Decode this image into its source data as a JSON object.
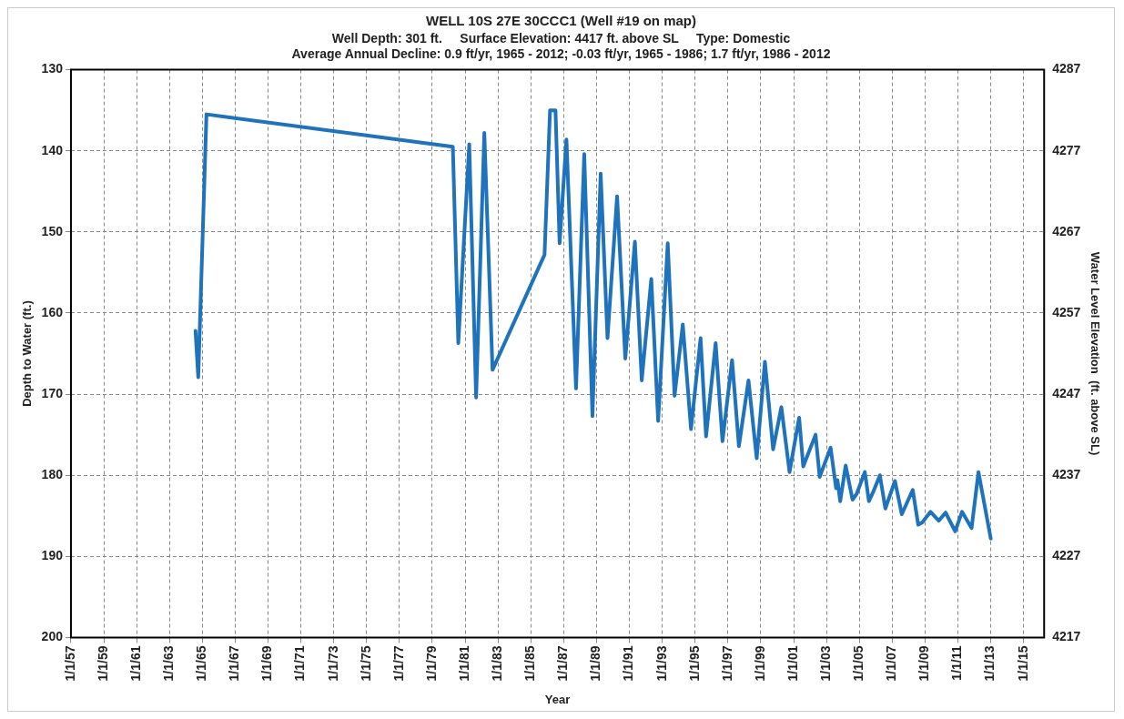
{
  "chart_data": {
    "type": "line",
    "title": "WELL 10S 27E 30CCC1 (Well #19 on map)",
    "subtitle": "Well Depth: 301 ft.     Surface Elevation: 4417 ft. above SL     Type: Domestic\nAverage Annual Decline: 0.9 ft/yr, 1965 - 2012; -0.03 ft/yr, 1965 - 1986; 1.7 ft/yr, 1986 - 2012",
    "xlabel": "Year",
    "ylabel": "Depth to Water (ft.)",
    "y2label": "Water Level Elevation  (ft. above SL)",
    "x": [
      "1964-08",
      "1964-10",
      "1965-04",
      "1980-04",
      "1980-08",
      "1981-04",
      "1981-09",
      "1982-03",
      "1982-09",
      "1985-11",
      "1986-03",
      "1986-07",
      "1986-10",
      "1987-03",
      "1987-10",
      "1988-04",
      "1988-10",
      "1989-04",
      "1989-09",
      "1990-04",
      "1990-10",
      "1991-05",
      "1991-10",
      "1992-05",
      "1992-10",
      "1993-05",
      "1993-10",
      "1994-04",
      "1994-10",
      "1995-05",
      "1995-09",
      "1996-04",
      "1996-09",
      "1997-04",
      "1997-09",
      "1998-04",
      "1998-10",
      "1999-04",
      "1999-10",
      "2000-04",
      "2000-10",
      "2001-05",
      "2001-08",
      "2002-05",
      "2002-08",
      "2003-04",
      "2003-08",
      "2003-09",
      "2003-11",
      "2004-03",
      "2004-08",
      "2004-11",
      "2005-05",
      "2005-08",
      "2005-11",
      "2006-04",
      "2006-08",
      "2007-03",
      "2007-08",
      "2008-04",
      "2008-08",
      "2008-11",
      "2009-05",
      "2009-11",
      "2010-04",
      "2010-11",
      "2011-04",
      "2011-11",
      "2012-04",
      "2013-01"
    ],
    "series": [
      {
        "color": "#1f73bd",
        "values": [
          162.2,
          167.9,
          135.5,
          139.5,
          163.7,
          139.2,
          170.4,
          137.8,
          167.0,
          152.8,
          135.0,
          135.0,
          151.4,
          138.6,
          169.3,
          140.4,
          172.7,
          142.8,
          163.1,
          145.6,
          165.6,
          151.2,
          168.3,
          155.8,
          173.3,
          151.4,
          170.2,
          161.4,
          174.3,
          163.1,
          175.2,
          163.7,
          175.8,
          165.8,
          176.4,
          168.3,
          177.9,
          166.0,
          176.8,
          171.6,
          179.6,
          172.9,
          178.9,
          175.0,
          180.2,
          176.6,
          181.6,
          180.6,
          183.2,
          178.8,
          183.0,
          182.3,
          179.6,
          183.2,
          182.1,
          180.0,
          184.1,
          180.7,
          184.8,
          181.8,
          186.1,
          185.8,
          184.5,
          185.6,
          184.6,
          186.9,
          184.5,
          186.5,
          179.6,
          187.8
        ]
      }
    ],
    "xlim": [
      "1957-01-01",
      "2016-04-01"
    ],
    "xticks": [
      {
        "value": "1957-01-01",
        "label": "1/1/57"
      },
      {
        "value": "1959-01-01",
        "label": "1/1/59"
      },
      {
        "value": "1961-01-01",
        "label": "1/1/61"
      },
      {
        "value": "1963-01-01",
        "label": "1/1/63"
      },
      {
        "value": "1965-01-01",
        "label": "1/1/65"
      },
      {
        "value": "1967-01-01",
        "label": "1/1/67"
      },
      {
        "value": "1969-01-01",
        "label": "1/1/69"
      },
      {
        "value": "1971-01-01",
        "label": "1/1/71"
      },
      {
        "value": "1973-01-01",
        "label": "1/1/73"
      },
      {
        "value": "1975-01-01",
        "label": "1/1/75"
      },
      {
        "value": "1977-01-01",
        "label": "1/1/77"
      },
      {
        "value": "1979-01-01",
        "label": "1/1/79"
      },
      {
        "value": "1981-01-01",
        "label": "1/1/81"
      },
      {
        "value": "1983-01-01",
        "label": "1/1/83"
      },
      {
        "value": "1985-01-01",
        "label": "1/1/85"
      },
      {
        "value": "1987-01-01",
        "label": "1/1/87"
      },
      {
        "value": "1989-01-01",
        "label": "1/1/89"
      },
      {
        "value": "1991-01-01",
        "label": "1/1/91"
      },
      {
        "value": "1993-01-01",
        "label": "1/1/93"
      },
      {
        "value": "1995-01-01",
        "label": "1/1/95"
      },
      {
        "value": "1997-01-01",
        "label": "1/1/97"
      },
      {
        "value": "1999-01-01",
        "label": "1/1/99"
      },
      {
        "value": "2001-01-01",
        "label": "1/1/01"
      },
      {
        "value": "2003-01-01",
        "label": "1/1/03"
      },
      {
        "value": "2005-01-01",
        "label": "1/1/05"
      },
      {
        "value": "2007-01-01",
        "label": "1/1/07"
      },
      {
        "value": "2009-01-01",
        "label": "1/1/09"
      },
      {
        "value": "2011-01-01",
        "label": "1/1/11"
      },
      {
        "value": "2013-01-01",
        "label": "1/1/13"
      },
      {
        "value": "2015-01-01",
        "label": "1/1/15"
      }
    ],
    "ylim": [
      200,
      130
    ],
    "yticks": [
      130,
      140,
      150,
      160,
      170,
      180,
      190,
      200
    ],
    "y2lim": [
      4217,
      4287
    ],
    "y2ticks": [
      4217,
      4227,
      4237,
      4247,
      4257,
      4267,
      4277,
      4287
    ],
    "grid": true,
    "legend": false,
    "marker": "none",
    "line_style": "solid"
  }
}
